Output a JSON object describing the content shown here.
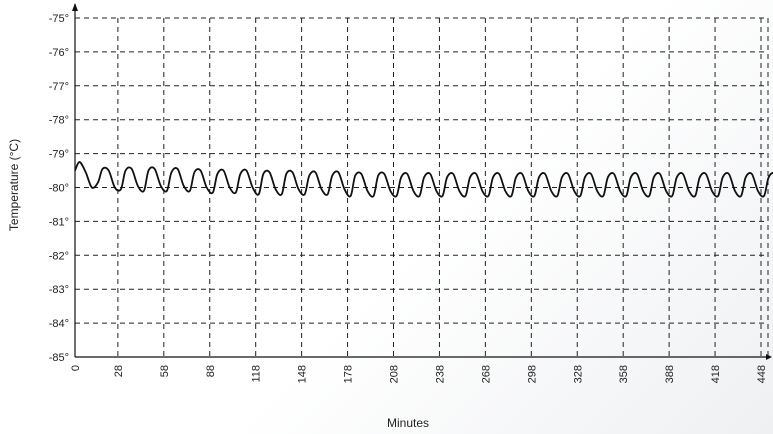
{
  "chart_data": {
    "type": "line",
    "xlabel": "Minutes",
    "ylabel": "Temperature (°C)",
    "xlim": [
      0,
      463
    ],
    "ylim": [
      -85,
      -75
    ],
    "x_ticks": [
      0,
      28,
      58,
      88,
      118,
      148,
      178,
      208,
      238,
      268,
      298,
      328,
      358,
      388,
      418,
      448
    ],
    "y_ticks": [
      -75,
      -76,
      -77,
      -78,
      -79,
      -80,
      -81,
      -82,
      -83,
      -84,
      -85
    ],
    "y_tick_labels": [
      "-75°",
      "-76°",
      "-77°",
      "-78°",
      "-79°",
      "-80°",
      "-81°",
      "-82°",
      "-83°",
      "-84°",
      "-85°"
    ],
    "grid": true,
    "series": [
      {
        "x": [
          0,
          3,
          7,
          11,
          15,
          18,
          22,
          26,
          30,
          33,
          37,
          41,
          45,
          48,
          52,
          56,
          60,
          63,
          67,
          71,
          75,
          78,
          82,
          86,
          90,
          93,
          97,
          101,
          105,
          108,
          112,
          116,
          120,
          123,
          127,
          131,
          135,
          138,
          142,
          146,
          150,
          153,
          157,
          161,
          165,
          168,
          172,
          176,
          180,
          183,
          187,
          191,
          195,
          198,
          202,
          206,
          210,
          213,
          217,
          221,
          225,
          228,
          232,
          236,
          240,
          243,
          247,
          251,
          255,
          258,
          262,
          266,
          270,
          273,
          277,
          281,
          285,
          288,
          292,
          296,
          300,
          303,
          307,
          311,
          315,
          318,
          322,
          326,
          330,
          333,
          337,
          341,
          345,
          348,
          352,
          356,
          360,
          363,
          367,
          371,
          375,
          378,
          382,
          386,
          390,
          393,
          397,
          401,
          405,
          408,
          412,
          416,
          420,
          423,
          427,
          431,
          435,
          438,
          442,
          446,
          450,
          453,
          457,
          461,
          463
        ],
        "y": [
          -79.5,
          -79.25,
          -79.55,
          -80.0,
          -79.85,
          -79.45,
          -79.5,
          -80.0,
          -80.05,
          -79.5,
          -79.45,
          -79.95,
          -80.1,
          -79.5,
          -79.45,
          -79.95,
          -80.1,
          -79.55,
          -79.45,
          -79.95,
          -80.1,
          -79.55,
          -79.5,
          -80.0,
          -80.15,
          -79.6,
          -79.5,
          -80.0,
          -80.15,
          -79.6,
          -79.5,
          -80.0,
          -80.2,
          -79.6,
          -79.55,
          -80.05,
          -80.2,
          -79.6,
          -79.55,
          -80.05,
          -80.2,
          -79.65,
          -79.55,
          -80.05,
          -80.2,
          -79.65,
          -79.55,
          -80.05,
          -80.25,
          -79.65,
          -79.6,
          -80.1,
          -80.25,
          -79.65,
          -79.6,
          -80.1,
          -80.25,
          -79.7,
          -79.6,
          -80.1,
          -80.25,
          -79.7,
          -79.6,
          -80.1,
          -80.25,
          -79.7,
          -79.6,
          -80.1,
          -80.25,
          -79.7,
          -79.6,
          -80.1,
          -80.25,
          -79.7,
          -79.6,
          -80.1,
          -80.25,
          -79.7,
          -79.6,
          -80.1,
          -80.25,
          -79.7,
          -79.6,
          -80.1,
          -80.25,
          -79.7,
          -79.6,
          -80.1,
          -80.25,
          -79.7,
          -79.6,
          -80.1,
          -80.25,
          -79.7,
          -79.6,
          -80.1,
          -80.25,
          -79.7,
          -79.6,
          -80.1,
          -80.25,
          -79.7,
          -79.6,
          -80.1,
          -80.25,
          -79.7,
          -79.6,
          -80.1,
          -80.25,
          -79.7,
          -79.6,
          -80.1,
          -80.25,
          -79.7,
          -79.6,
          -80.1,
          -80.25,
          -79.7,
          -79.6,
          -80.1,
          -80.25,
          -79.7,
          -79.6,
          -80.1,
          -80.2
        ]
      }
    ]
  }
}
